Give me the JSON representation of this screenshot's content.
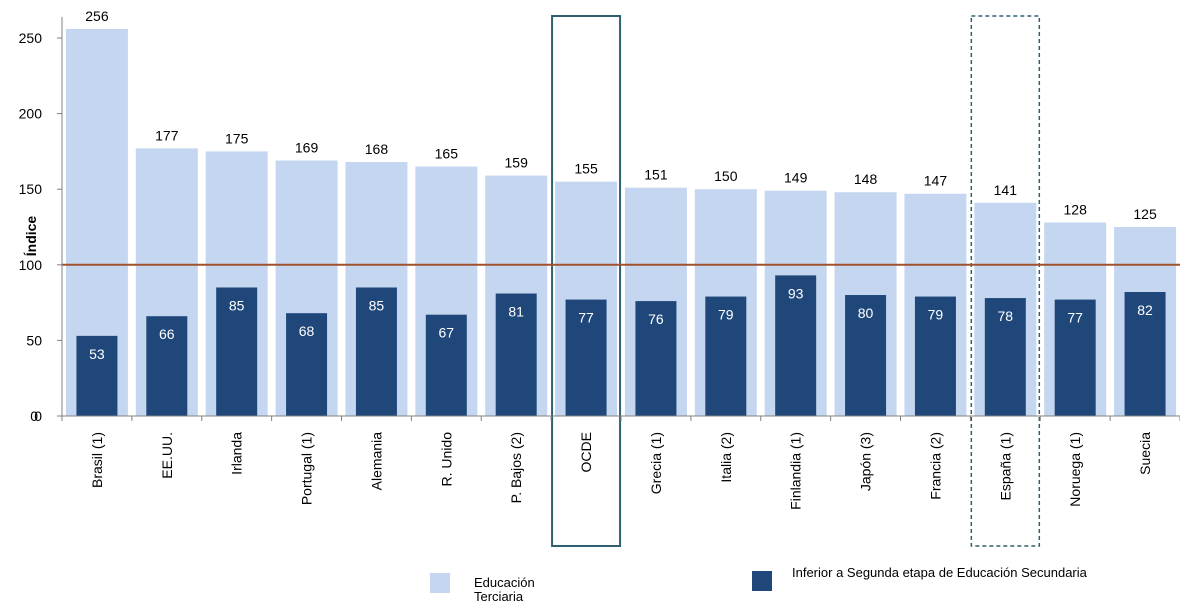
{
  "chart_data": {
    "type": "bar",
    "title": "",
    "xlabel": "",
    "ylabel": "Índice",
    "ylim": [
      0,
      260
    ],
    "yticks": [
      0,
      50,
      100,
      150,
      200,
      250
    ],
    "yticks_extra_label": "0",
    "reference_line": {
      "value": 100,
      "color": "#a0522d"
    },
    "categories": [
      "Brasil (1)",
      "EE.UU.",
      "Irlanda",
      "Portugal (1)",
      "Alemania",
      "R. Unido",
      "P. Bajos (2)",
      "OCDE",
      "Grecia (1)",
      "Italia (2)",
      "Finlandia (1)",
      "Japón (3)",
      "Francia (2)",
      "España (1)",
      "Noruega (1)",
      "Suecia"
    ],
    "series": [
      {
        "name": "Educación Terciaria",
        "color": "#c5d7f0",
        "values": [
          256,
          177,
          175,
          169,
          168,
          165,
          159,
          155,
          151,
          150,
          149,
          148,
          147,
          141,
          128,
          125
        ]
      },
      {
        "name": "Inferior a Segunda etapa de Educación Secundaria",
        "color": "#1f477a",
        "values": [
          53,
          66,
          85,
          68,
          85,
          67,
          81,
          77,
          76,
          79,
          93,
          80,
          79,
          78,
          77,
          82
        ]
      }
    ],
    "highlights": [
      {
        "category": "OCDE",
        "style": "solid",
        "color": "#2f6070"
      },
      {
        "category": "España (1)",
        "style": "dashed",
        "color": "#2f6070"
      }
    ],
    "legend_position": "bottom",
    "grid": false
  }
}
